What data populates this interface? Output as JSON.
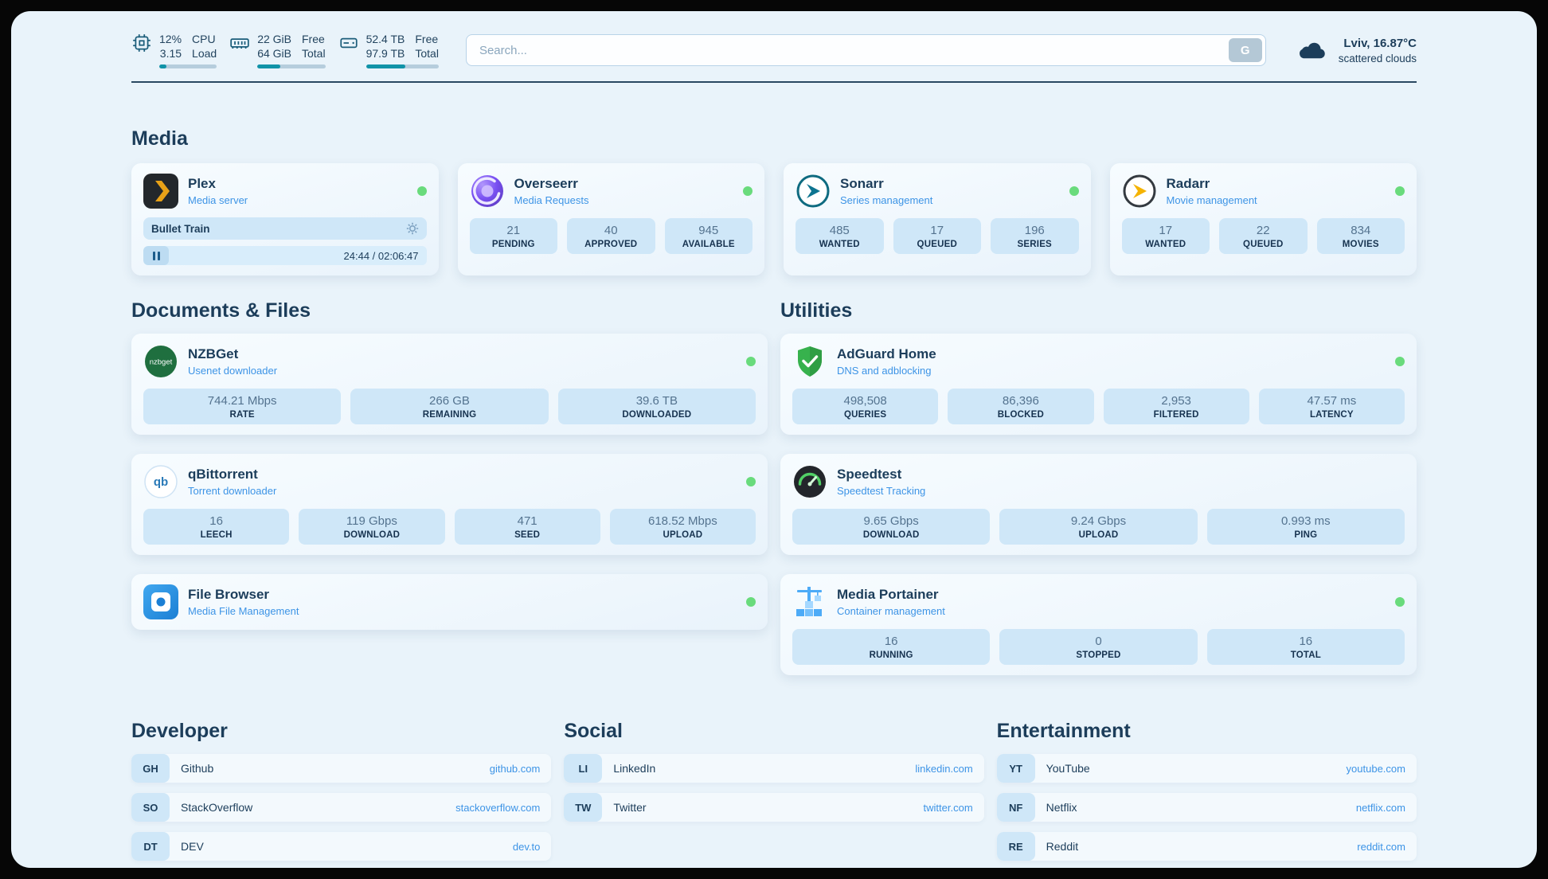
{
  "colors": {
    "page_bg": "#e9f3fa",
    "stat_bg": "#cfe7f8",
    "link": "#3d94e6",
    "heading": "#1c3d5a",
    "status_online": "#69db7c",
    "bar_teal": "#1193a8"
  },
  "topbar": {
    "cpu": {
      "values": [
        "12%",
        "3.15"
      ],
      "labels": [
        "CPU",
        "Load"
      ],
      "percent": 12
    },
    "ram": {
      "values": [
        "22 GiB",
        "64 GiB"
      ],
      "labels": [
        "Free",
        "Total"
      ],
      "percent": 34
    },
    "disk": {
      "values": [
        "52.4 TB",
        "97.9 TB"
      ],
      "labels": [
        "Free",
        "Total"
      ],
      "percent": 54
    },
    "search": {
      "placeholder": "Search...",
      "button_label": "G"
    },
    "weather": {
      "location": "Lviv, 16.87°C",
      "condition": "scattered clouds"
    }
  },
  "icons": {
    "nzbget_text": "nzbget",
    "qbittorrent_text": "qb"
  },
  "media": {
    "title": "Media",
    "plex": {
      "name": "Plex",
      "subtitle": "Media server",
      "online": true,
      "now_playing": "Bullet Train",
      "time": "24:44 / 02:06:47"
    },
    "overseerr": {
      "name": "Overseerr",
      "subtitle": "Media Requests",
      "online": true,
      "stats": [
        {
          "value": "21",
          "label": "PENDING"
        },
        {
          "value": "40",
          "label": "APPROVED"
        },
        {
          "value": "945",
          "label": "AVAILABLE"
        }
      ]
    },
    "sonarr": {
      "name": "Sonarr",
      "subtitle": "Series management",
      "online": true,
      "stats": [
        {
          "value": "485",
          "label": "WANTED"
        },
        {
          "value": "17",
          "label": "QUEUED"
        },
        {
          "value": "196",
          "label": "SERIES"
        }
      ]
    },
    "radarr": {
      "name": "Radarr",
      "subtitle": "Movie management",
      "online": true,
      "stats": [
        {
          "value": "17",
          "label": "WANTED"
        },
        {
          "value": "22",
          "label": "QUEUED"
        },
        {
          "value": "834",
          "label": "MOVIES"
        }
      ]
    }
  },
  "documents": {
    "title": "Documents & Files",
    "nzbget": {
      "name": "NZBGet",
      "subtitle": "Usenet downloader",
      "online": true,
      "stats": [
        {
          "value": "744.21 Mbps",
          "label": "RATE"
        },
        {
          "value": "266 GB",
          "label": "REMAINING"
        },
        {
          "value": "39.6 TB",
          "label": "DOWNLOADED"
        }
      ]
    },
    "qbittorrent": {
      "name": "qBittorrent",
      "subtitle": "Torrent downloader",
      "online": true,
      "stats": [
        {
          "value": "16",
          "label": "LEECH"
        },
        {
          "value": "119 Gbps",
          "label": "DOWNLOAD"
        },
        {
          "value": "471",
          "label": "SEED"
        },
        {
          "value": "618.52 Mbps",
          "label": "UPLOAD"
        }
      ]
    },
    "filebrowser": {
      "name": "File Browser",
      "subtitle": "Media File Management",
      "online": true
    }
  },
  "utilities": {
    "title": "Utilities",
    "adguard": {
      "name": "AdGuard Home",
      "subtitle": "DNS and adblocking",
      "online": true,
      "stats": [
        {
          "value": "498,508",
          "label": "QUERIES"
        },
        {
          "value": "86,396",
          "label": "BLOCKED"
        },
        {
          "value": "2,953",
          "label": "FILTERED"
        },
        {
          "value": "47.57 ms",
          "label": "LATENCY"
        }
      ]
    },
    "speedtest": {
      "name": "Speedtest",
      "subtitle": "Speedtest Tracking",
      "online": false,
      "stats": [
        {
          "value": "9.65 Gbps",
          "label": "DOWNLOAD"
        },
        {
          "value": "9.24 Gbps",
          "label": "UPLOAD"
        },
        {
          "value": "0.993 ms",
          "label": "PING"
        }
      ]
    },
    "portainer": {
      "name": "Media Portainer",
      "subtitle": "Container management",
      "online": true,
      "stats": [
        {
          "value": "16",
          "label": "RUNNING"
        },
        {
          "value": "0",
          "label": "STOPPED"
        },
        {
          "value": "16",
          "label": "TOTAL"
        }
      ]
    }
  },
  "bookmarks": {
    "developer": {
      "title": "Developer",
      "items": [
        {
          "abbr": "GH",
          "name": "Github",
          "url": "github.com"
        },
        {
          "abbr": "SO",
          "name": "StackOverflow",
          "url": "stackoverflow.com"
        },
        {
          "abbr": "DT",
          "name": "DEV",
          "url": "dev.to"
        }
      ]
    },
    "social": {
      "title": "Social",
      "items": [
        {
          "abbr": "LI",
          "name": "LinkedIn",
          "url": "linkedin.com"
        },
        {
          "abbr": "TW",
          "name": "Twitter",
          "url": "twitter.com"
        }
      ]
    },
    "entertainment": {
      "title": "Entertainment",
      "items": [
        {
          "abbr": "YT",
          "name": "YouTube",
          "url": "youtube.com"
        },
        {
          "abbr": "NF",
          "name": "Netflix",
          "url": "netflix.com"
        },
        {
          "abbr": "RE",
          "name": "Reddit",
          "url": "reddit.com"
        }
      ]
    }
  }
}
